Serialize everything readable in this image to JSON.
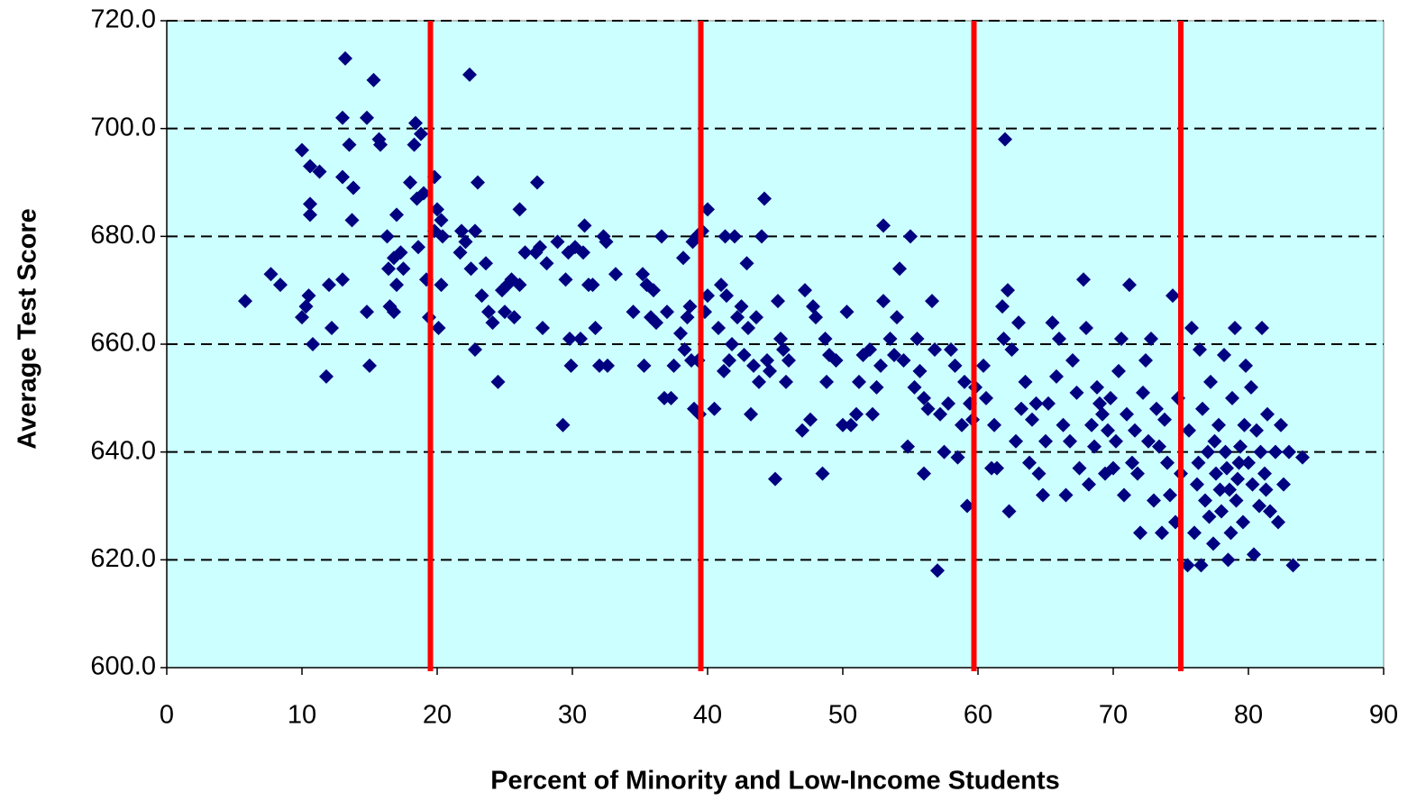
{
  "chart_data": {
    "type": "scatter",
    "x_label": "Percent of Minority and Low-Income Students",
    "y_label": "Average Test Score",
    "color": "#000080",
    "background": "#ccffff",
    "grid": true,
    "cutoffs": [
      19.5,
      39.5,
      59.7,
      75
    ],
    "cutoff_color": "#ff0000",
    "xlim": [
      0,
      90
    ],
    "ylim": [
      600,
      720
    ],
    "xticks": [
      0,
      10,
      20,
      30,
      40,
      50,
      60,
      70,
      80,
      90
    ],
    "yticks": [
      {
        "value": 600,
        "label": "600.0"
      },
      {
        "value": 620,
        "label": "620.0"
      },
      {
        "value": 640,
        "label": "640.0"
      },
      {
        "value": 660,
        "label": "660.0"
      },
      {
        "value": 680,
        "label": "680.0"
      },
      {
        "value": 700,
        "label": "700.0"
      },
      {
        "value": 720,
        "label": "720.0"
      }
    ],
    "x": [
      5.8,
      7.7,
      8.4,
      10,
      10,
      10.3,
      10.5,
      10.6,
      10.6,
      10.6,
      10.8,
      11.3,
      11.8,
      12,
      12.2,
      13,
      13,
      13,
      13.2,
      13.5,
      13.7,
      13.8,
      14.8,
      14.8,
      15,
      15.3,
      15.7,
      15.8,
      16.3,
      16.4,
      16.5,
      16.8,
      16.8,
      17,
      17,
      17.3,
      17.5,
      18,
      18.3,
      18.4,
      18.5,
      18.6,
      18.8,
      19,
      19.2,
      19.4,
      19.8,
      19.8,
      20,
      20.1,
      20.3,
      20.3,
      20.4,
      21.7,
      21.8,
      22.1,
      22.4,
      22.5,
      22.8,
      22.8,
      23,
      23.3,
      23.6,
      23.8,
      24.1,
      24.5,
      24.8,
      25,
      25.2,
      25.5,
      25.7,
      26.1,
      26.1,
      26.5,
      27.3,
      27.4,
      27.6,
      27.8,
      28.1,
      28.9,
      29.3,
      29.5,
      29.7,
      29.8,
      29.9,
      30.2,
      30.6,
      30.8,
      30.9,
      31.2,
      31.5,
      31.7,
      32,
      32.3,
      32.5,
      32.6,
      33.2,
      34.5,
      35.2,
      35.3,
      35.5,
      35.8,
      36,
      36.2,
      36.6,
      36.8,
      37,
      37.3,
      37.5,
      38,
      38.2,
      38.3,
      38.5,
      38.7,
      38.8,
      38.9,
      39,
      39.2,
      39.3,
      39.4,
      39.6,
      39.8,
      40,
      40,
      40.5,
      40.8,
      41,
      41.2,
      41.3,
      41.4,
      41.6,
      41.8,
      42,
      42.2,
      42.5,
      42.7,
      42.9,
      43,
      43.2,
      43.4,
      43.6,
      43.8,
      44,
      44.2,
      44.4,
      44.6,
      45,
      45.2,
      45.4,
      45.6,
      45.8,
      46,
      47,
      47.2,
      47.6,
      47.8,
      48,
      48.5,
      48.7,
      48.8,
      49,
      49.5,
      50,
      50.3,
      50.6,
      51,
      51.2,
      51.5,
      52,
      52.2,
      52.5,
      52.8,
      53,
      53,
      53.5,
      53.8,
      54,
      54.2,
      54.5,
      54.8,
      55,
      55.3,
      55.5,
      55.7,
      56,
      56,
      56.3,
      56.6,
      56.8,
      57,
      57.2,
      57.5,
      57.8,
      58,
      58.3,
      58.5,
      58.8,
      59,
      59.2,
      59.4,
      59.6,
      59.8,
      60.4,
      60.6,
      61,
      61.2,
      61.4,
      61.8,
      61.9,
      62,
      62.2,
      62.3,
      62.5,
      62.8,
      63,
      63.2,
      63.5,
      63.8,
      64,
      64.3,
      64.5,
      64.8,
      65,
      65.2,
      65.5,
      65.8,
      66,
      66.3,
      66.5,
      66.8,
      67,
      67.3,
      67.5,
      67.8,
      68,
      68.2,
      68.4,
      68.6,
      68.8,
      69,
      69.2,
      69.4,
      69.6,
      69.8,
      70,
      70.2,
      70.4,
      70.6,
      70.8,
      71,
      71.2,
      71.4,
      71.6,
      71.8,
      72,
      72.2,
      72.4,
      72.6,
      72.8,
      73,
      73.2,
      73.4,
      73.6,
      73.8,
      74,
      74.2,
      74.4,
      74.6,
      74.8,
      75,
      75.5,
      75.6,
      75.8,
      76,
      76.2,
      76.4,
      76.5,
      76.6,
      76.8,
      77,
      77.2,
      77.4,
      77.6,
      77.8,
      78,
      78.2,
      78.4,
      78.5,
      78.6,
      78.8,
      79,
      79.2,
      79.4,
      79.6,
      79.8,
      80,
      80.2,
      80.4,
      80.6,
      80.8,
      81,
      81.2,
      81.4,
      81.6,
      82,
      82.2,
      82.4,
      82.6,
      83,
      83.3,
      84,
      76.3,
      77.1,
      77.9,
      78.3,
      79.1,
      79.7,
      80.3,
      80.9,
      81.3,
      77.5,
      78.7,
      79.3
    ],
    "values": [
      668,
      673,
      671,
      696,
      665,
      667,
      669,
      684,
      686,
      693,
      660,
      692,
      654,
      671,
      663,
      672,
      702,
      691,
      713,
      697,
      683,
      689,
      702,
      666,
      656,
      709,
      698,
      697,
      680,
      674,
      667,
      666,
      676,
      671,
      684,
      677,
      674,
      690,
      697,
      701,
      687,
      678,
      699,
      688,
      672,
      665,
      681,
      691,
      685,
      663,
      671,
      683,
      680,
      677,
      681,
      679,
      710,
      674,
      681,
      659,
      690,
      669,
      675,
      666,
      664,
      653,
      670,
      666,
      671,
      672,
      665,
      685,
      671,
      677,
      677,
      690,
      678,
      663,
      675,
      679,
      645,
      672,
      677,
      661,
      656,
      678,
      661,
      677,
      682,
      671,
      671,
      663,
      656,
      680,
      679,
      656,
      673,
      666,
      673,
      656,
      671,
      665,
      670,
      664,
      680,
      650,
      666,
      650,
      656,
      662,
      676,
      659,
      665,
      667,
      657,
      679,
      648,
      680,
      657,
      647,
      681,
      666,
      669,
      685,
      648,
      663,
      671,
      655,
      680,
      669,
      657,
      660,
      680,
      665,
      667,
      658,
      675,
      663,
      647,
      656,
      665,
      653,
      680,
      687,
      657,
      655,
      635,
      668,
      661,
      659,
      653,
      657,
      644,
      670,
      646,
      667,
      665,
      636,
      661,
      653,
      658,
      657,
      645,
      666,
      645,
      647,
      653,
      658,
      659,
      647,
      652,
      656,
      668,
      682,
      661,
      658,
      665,
      674,
      657,
      641,
      680,
      652,
      661,
      655,
      650,
      636,
      648,
      668,
      659,
      618,
      647,
      640,
      649,
      659,
      656,
      639,
      645,
      653,
      630,
      649,
      646,
      652,
      656,
      650,
      637,
      645,
      637,
      667,
      661,
      698,
      670,
      629,
      659,
      642,
      664,
      648,
      653,
      638,
      646,
      649,
      636,
      632,
      642,
      649,
      664,
      654,
      661,
      645,
      632,
      642,
      657,
      651,
      637,
      672,
      663,
      634,
      645,
      641,
      652,
      649,
      647,
      636,
      644,
      650,
      637,
      642,
      655,
      661,
      632,
      647,
      671,
      638,
      644,
      636,
      625,
      651,
      657,
      642,
      661,
      631,
      648,
      641,
      625,
      646,
      638,
      632,
      669,
      627,
      650,
      636,
      619,
      644,
      663,
      625,
      634,
      659,
      619,
      648,
      631,
      640,
      653,
      623,
      636,
      645,
      629,
      658,
      637,
      620,
      633,
      650,
      663,
      635,
      641,
      627,
      656,
      638,
      652,
      621,
      644,
      630,
      663,
      636,
      647,
      629,
      640,
      627,
      645,
      634,
      640,
      619,
      639,
      638,
      628,
      633,
      640,
      631,
      645,
      634,
      640,
      633,
      642,
      625,
      638
    ]
  }
}
